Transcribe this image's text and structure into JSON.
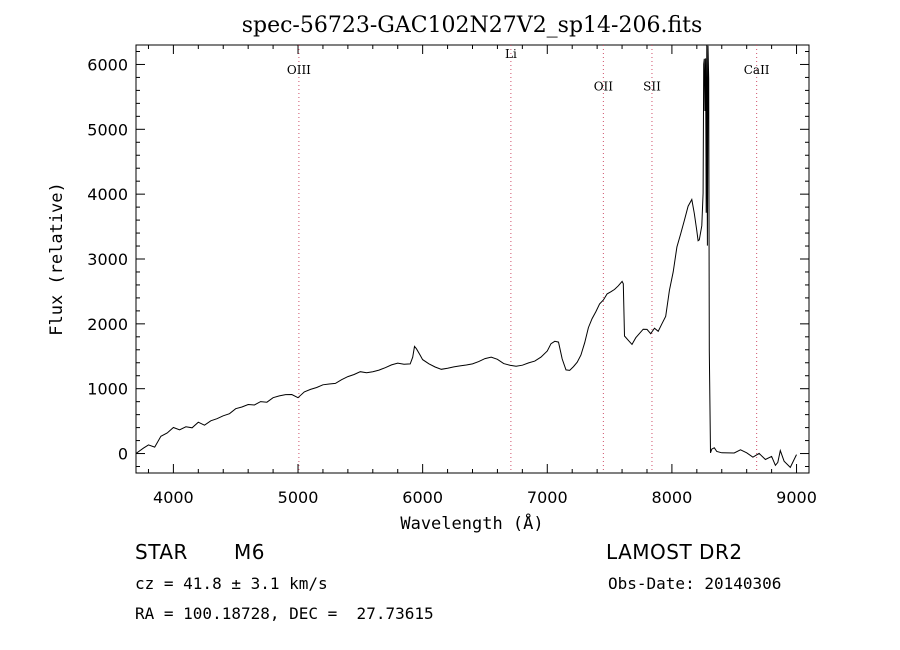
{
  "chart_data": {
    "type": "line",
    "title": "spec-56723-GAC102N27V2_sp14-206.fits",
    "xlabel": "Wavelength (Å)",
    "ylabel": "Flux (relative)",
    "xlim": [
      3700,
      9100
    ],
    "ylim": [
      -300,
      6300
    ],
    "xticks": [
      4000,
      5000,
      6000,
      7000,
      8000,
      9000
    ],
    "yticks": [
      0,
      1000,
      2000,
      3000,
      4000,
      5000,
      6000
    ],
    "grid": false,
    "lines": [
      {
        "label": "OIII",
        "x": 5007,
        "label_y": 5850
      },
      {
        "label": "Li",
        "x": 6708,
        "label_y": 6100
      },
      {
        "label": "OII",
        "x": 7450,
        "label_y": 5600
      },
      {
        "label": "SII",
        "x": 7840,
        "label_y": 5600
      },
      {
        "label": "CaII",
        "x": 8680,
        "label_y": 5850
      }
    ],
    "series": [
      {
        "x": [
          3700,
          3760,
          3800,
          3850,
          3900,
          3950,
          4000,
          4050,
          4100,
          4150,
          4200,
          4250,
          4300,
          4350,
          4400,
          4450,
          4500,
          4550,
          4600,
          4650,
          4700,
          4750,
          4800,
          4850,
          4900,
          4950,
          5000,
          5050,
          5100,
          5150,
          5200,
          5250,
          5300,
          5350,
          5400,
          5450,
          5500,
          5550,
          5600,
          5650,
          5700,
          5750,
          5800,
          5850,
          5900,
          5920,
          5935,
          5950,
          5980,
          6000,
          6050,
          6100,
          6150,
          6200,
          6250,
          6300,
          6350,
          6400,
          6450,
          6500,
          6550,
          6600,
          6650,
          6700,
          6750,
          6800,
          6850,
          6900,
          6950,
          7000,
          7030,
          7060,
          7090,
          7120,
          7150,
          7180,
          7210,
          7240,
          7270,
          7300,
          7330,
          7360,
          7390,
          7420,
          7450,
          7480,
          7510,
          7540,
          7570,
          7600,
          7610,
          7620,
          7650,
          7680,
          7710,
          7740,
          7770,
          7800,
          7830,
          7860,
          7890,
          7920,
          7950,
          7980,
          8010,
          8040,
          8070,
          8100,
          8130,
          8160,
          8180,
          8200,
          8210,
          8220,
          8240,
          8250,
          8255,
          8260,
          8265,
          8270,
          8275,
          8280,
          8285,
          8290,
          8295,
          8300,
          8310,
          8320,
          8340,
          8360,
          8400,
          8450,
          8500,
          8550,
          8600,
          8650,
          8700,
          8750,
          8800,
          8830,
          8850,
          8870,
          8900,
          8950,
          9000
        ],
        "y": [
          0,
          100,
          150,
          100,
          250,
          300,
          400,
          380,
          430,
          400,
          470,
          420,
          500,
          550,
          600,
          620,
          680,
          700,
          750,
          760,
          820,
          800,
          850,
          870,
          900,
          920,
          880,
          960,
          980,
          1000,
          1050,
          1080,
          1100,
          1150,
          1180,
          1200,
          1250,
          1250,
          1280,
          1300,
          1320,
          1350,
          1380,
          1380,
          1400,
          1500,
          1650,
          1600,
          1500,
          1450,
          1400,
          1350,
          1300,
          1300,
          1320,
          1350,
          1380,
          1400,
          1420,
          1450,
          1470,
          1450,
          1400,
          1380,
          1350,
          1350,
          1380,
          1420,
          1500,
          1600,
          1700,
          1720,
          1700,
          1450,
          1300,
          1300,
          1350,
          1400,
          1500,
          1700,
          1950,
          2100,
          2200,
          2300,
          2350,
          2450,
          2500,
          2550,
          2600,
          2650,
          2600,
          1800,
          1750,
          1700,
          1800,
          1850,
          1900,
          1900,
          1850,
          1950,
          1900,
          2000,
          2100,
          2500,
          2800,
          3200,
          3400,
          3600,
          3800,
          3900,
          3700,
          3450,
          3300,
          3300,
          3500,
          4000,
          6000,
          6100,
          5300,
          6100,
          3700,
          6300,
          3200,
          6300,
          5800,
          1600,
          0,
          50,
          80,
          40,
          30,
          20,
          0,
          40,
          0,
          -50,
          20,
          -80,
          -50,
          -200,
          -150,
          50,
          -100,
          -200,
          -20
        ]
      }
    ]
  },
  "info": {
    "class_label": "STAR",
    "subclass": "M6",
    "cz": "cz = 41.8 ± 3.1 km/s",
    "coords": "RA = 100.18728, DEC =  27.73615",
    "survey": "LAMOST DR2",
    "obs_date": "Obs-Date: 20140306"
  }
}
